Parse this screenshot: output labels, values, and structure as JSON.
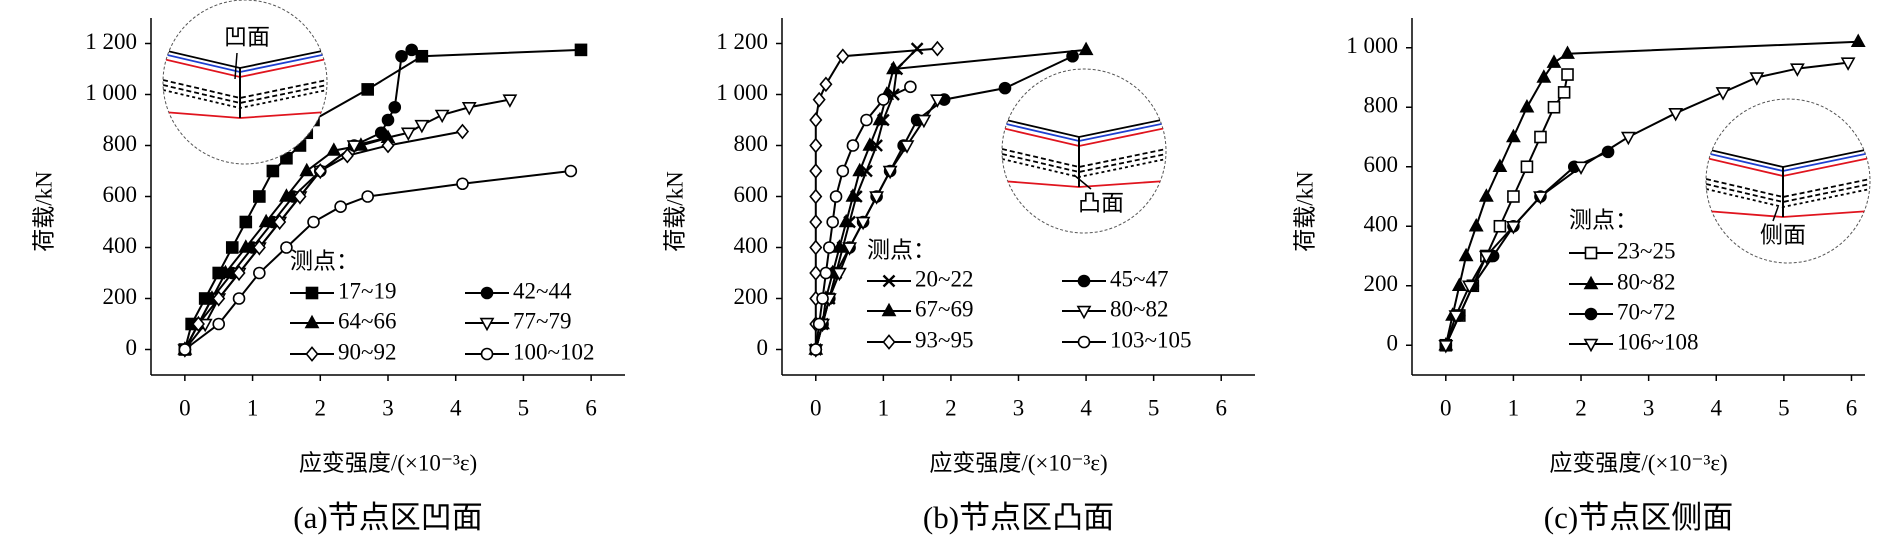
{
  "chart_data": [
    {
      "type": "line",
      "caption": "(a)节点区凹面",
      "xlabel": "应变强度/(×10⁻³ε)",
      "ylabel": "荷载/kN",
      "legend_title": "测点：",
      "inset_label": "凹面",
      "xlim": [
        -0.5,
        6.5
      ],
      "ylim": [
        -100,
        1300
      ],
      "xticks": [
        0,
        1,
        2,
        3,
        4,
        5,
        6
      ],
      "yticks": [
        0,
        200,
        400,
        600,
        800,
        {
          "value": 1000,
          "label": "1 000"
        },
        {
          "value": 1200,
          "label": "1 200"
        }
      ],
      "series": [
        {
          "name": "17~19",
          "marker": "square",
          "color": "#000000",
          "x": [
            0,
            0.1,
            0.3,
            0.5,
            0.7,
            0.9,
            1.1,
            1.3,
            1.5,
            1.7,
            1.8,
            1.9,
            2.7,
            3.5,
            5.85
          ],
          "values": [
            0,
            100,
            200,
            300,
            400,
            500,
            600,
            700,
            750,
            800,
            850,
            900,
            1020,
            1150,
            1175
          ]
        },
        {
          "name": "42~44",
          "marker": "circle",
          "color": "#000000",
          "x": [
            0,
            0.2,
            0.4,
            0.7,
            1.0,
            1.3,
            1.6,
            2.0,
            2.5,
            2.9,
            3.0,
            3.1,
            3.2,
            3.35
          ],
          "values": [
            0,
            100,
            200,
            300,
            400,
            500,
            600,
            700,
            800,
            850,
            900,
            950,
            1150,
            1175
          ]
        },
        {
          "name": "64~66",
          "marker": "triangle",
          "color": "#000000",
          "x": [
            0,
            0.2,
            0.4,
            0.6,
            0.9,
            1.2,
            1.5,
            1.8,
            2.2,
            2.6,
            3.0
          ],
          "values": [
            0,
            100,
            200,
            300,
            400,
            500,
            600,
            700,
            780,
            800,
            830
          ]
        },
        {
          "name": "77~79",
          "marker": "tri-down-open",
          "color": "#000000",
          "x": [
            0,
            0.3,
            0.5,
            0.8,
            1.1,
            1.4,
            1.7,
            2.0,
            2.5,
            3.3,
            3.5,
            3.8,
            4.2,
            4.8
          ],
          "values": [
            0,
            100,
            200,
            300,
            400,
            500,
            600,
            700,
            800,
            850,
            880,
            920,
            950,
            980
          ]
        },
        {
          "name": "90~92",
          "marker": "diamond-open",
          "color": "#000000",
          "x": [
            0,
            0.2,
            0.5,
            0.8,
            1.1,
            1.4,
            1.7,
            2.0,
            2.4,
            3.0,
            4.1
          ],
          "values": [
            0,
            100,
            200,
            300,
            400,
            500,
            600,
            700,
            760,
            800,
            855
          ]
        },
        {
          "name": "100~102",
          "marker": "circle-open",
          "color": "#000000",
          "x": [
            0,
            0.5,
            0.8,
            1.1,
            1.5,
            1.9,
            2.3,
            2.7,
            4.1,
            5.7
          ],
          "values": [
            0,
            100,
            200,
            300,
            400,
            500,
            560,
            600,
            650,
            700
          ]
        }
      ]
    },
    {
      "type": "line",
      "caption": "(b)节点区凸面",
      "xlabel": "应变强度/(×10⁻³ε)",
      "ylabel": "荷载/kN",
      "legend_title": "测点：",
      "inset_label": "凸面",
      "xlim": [
        -0.5,
        6.5
      ],
      "ylim": [
        -100,
        1300
      ],
      "xticks": [
        0,
        1,
        2,
        3,
        4,
        5,
        6
      ],
      "yticks": [
        0,
        200,
        400,
        600,
        800,
        {
          "value": 1000,
          "label": "1 000"
        },
        {
          "value": 1200,
          "label": "1 200"
        }
      ],
      "series": [
        {
          "name": "20~22",
          "marker": "x",
          "color": "#000000",
          "x": [
            0,
            0.1,
            0.2,
            0.3,
            0.4,
            0.5,
            0.6,
            0.75,
            0.9,
            1.0,
            1.15,
            1.2,
            1.5
          ],
          "values": [
            0,
            100,
            200,
            300,
            400,
            500,
            600,
            700,
            800,
            900,
            1000,
            1100,
            1180
          ]
        },
        {
          "name": "45~47",
          "marker": "circle",
          "color": "#000000",
          "x": [
            0,
            0.1,
            0.2,
            0.3,
            0.5,
            0.7,
            0.9,
            1.1,
            1.3,
            1.5,
            1.9,
            2.8,
            3.8
          ],
          "values": [
            0,
            100,
            200,
            300,
            400,
            500,
            600,
            700,
            800,
            900,
            980,
            1025,
            1150
          ]
        },
        {
          "name": "67~69",
          "marker": "triangle",
          "color": "#000000",
          "x": [
            0,
            0.1,
            0.15,
            0.25,
            0.35,
            0.45,
            0.55,
            0.65,
            0.8,
            0.95,
            1.05,
            1.15,
            4.0
          ],
          "values": [
            0,
            100,
            200,
            300,
            400,
            500,
            600,
            700,
            800,
            900,
            1000,
            1100,
            1175
          ]
        },
        {
          "name": "80~82",
          "marker": "tri-down-open",
          "color": "#000000",
          "x": [
            0,
            0.1,
            0.2,
            0.35,
            0.5,
            0.7,
            0.9,
            1.1,
            1.35,
            1.6,
            1.8
          ],
          "values": [
            0,
            100,
            200,
            300,
            400,
            500,
            600,
            700,
            800,
            900,
            980
          ]
        },
        {
          "name": "93~95",
          "marker": "diamond-open",
          "color": "#000000",
          "x": [
            0,
            0,
            0,
            0,
            0,
            0,
            0,
            0,
            0,
            0,
            0.05,
            0.15,
            0.4,
            1.8
          ],
          "values": [
            0,
            100,
            200,
            300,
            400,
            500,
            600,
            700,
            800,
            900,
            980,
            1040,
            1150,
            1180
          ]
        },
        {
          "name": "103~105",
          "marker": "circle-open",
          "color": "#000000",
          "x": [
            0,
            0.05,
            0.1,
            0.15,
            0.2,
            0.25,
            0.3,
            0.4,
            0.55,
            0.75,
            1.0,
            1.4
          ],
          "values": [
            0,
            100,
            200,
            300,
            400,
            500,
            600,
            700,
            800,
            900,
            980,
            1030
          ]
        }
      ]
    },
    {
      "type": "line",
      "caption": "(c)节点区侧面",
      "xlabel": "应变强度/(×10⁻³ε)",
      "ylabel": "荷载/kN",
      "legend_title": "测点：",
      "inset_label": "侧面",
      "xlim": [
        -0.5,
        6.2
      ],
      "ylim": [
        -100,
        1100
      ],
      "xticks": [
        0,
        1,
        2,
        3,
        4,
        5,
        6
      ],
      "yticks": [
        0,
        200,
        400,
        600,
        800,
        {
          "value": 1000,
          "label": "1 000"
        }
      ],
      "series": [
        {
          "name": "23~25",
          "marker": "square-open",
          "color": "#000000",
          "x": [
            0,
            0.2,
            0.4,
            0.6,
            0.8,
            1.0,
            1.2,
            1.4,
            1.6,
            1.75,
            1.8
          ],
          "values": [
            0,
            100,
            200,
            300,
            400,
            500,
            600,
            700,
            800,
            850,
            910
          ]
        },
        {
          "name": "80~82",
          "marker": "triangle",
          "color": "#000000",
          "x": [
            0,
            0.1,
            0.2,
            0.3,
            0.45,
            0.6,
            0.8,
            1.0,
            1.2,
            1.45,
            1.6,
            1.8,
            6.1
          ],
          "values": [
            0,
            100,
            200,
            300,
            400,
            500,
            600,
            700,
            800,
            900,
            950,
            980,
            1020
          ]
        },
        {
          "name": "70~72",
          "marker": "circle",
          "color": "#000000",
          "x": [
            0,
            0.2,
            0.4,
            0.7,
            1.0,
            1.4,
            1.9,
            2.4
          ],
          "values": [
            0,
            100,
            200,
            300,
            400,
            500,
            600,
            650
          ]
        },
        {
          "name": "106~108",
          "marker": "tri-down-open",
          "color": "#000000",
          "x": [
            0,
            0.15,
            0.35,
            0.6,
            1.0,
            1.4,
            2.0,
            2.7,
            3.4,
            4.1,
            4.6,
            5.2,
            5.95
          ],
          "values": [
            0,
            100,
            200,
            300,
            400,
            500,
            600,
            700,
            780,
            850,
            900,
            930,
            950
          ]
        }
      ]
    }
  ]
}
